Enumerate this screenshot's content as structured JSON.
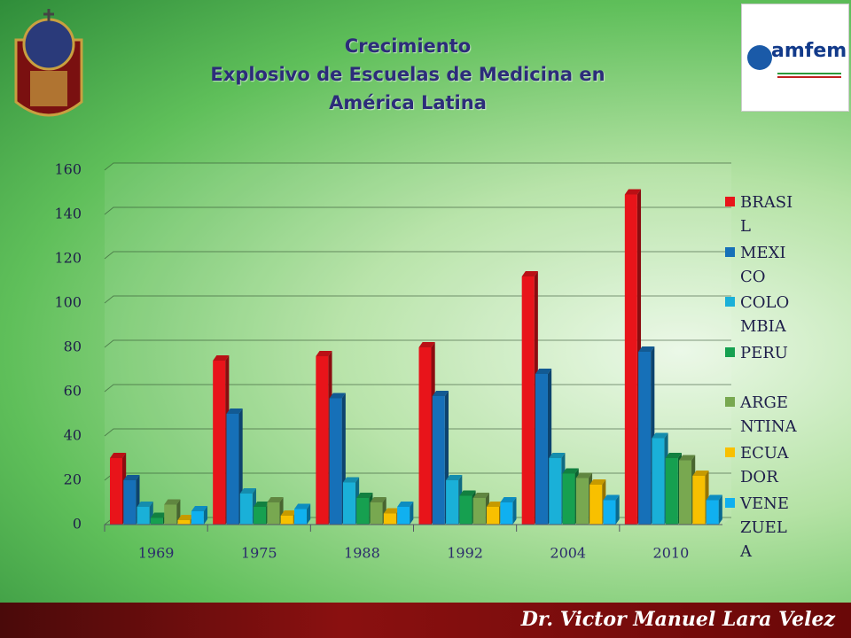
{
  "header": {
    "title": "Crecimiento\nExplosivo de Escuelas de Medicina en\nAmérica Latina",
    "logo_text": "amfem"
  },
  "footer": {
    "author": "Dr. Victor Manuel Lara Velez"
  },
  "chart_data": {
    "type": "bar3d",
    "categories": [
      "1969",
      "1975",
      "1988",
      "1992",
      "2004",
      "2010"
    ],
    "series": [
      {
        "name": "BRASIL",
        "color": "#e8141a",
        "values": [
          30,
          74,
          76,
          80,
          112,
          149
        ]
      },
      {
        "name": "MEXICO",
        "color": "#1670b8",
        "values": [
          20,
          50,
          57,
          58,
          68,
          78
        ]
      },
      {
        "name": "COLOMBIA",
        "color": "#1ab0d8",
        "values": [
          8,
          14,
          19,
          20,
          30,
          39
        ]
      },
      {
        "name": "PERU",
        "color": "#16a050",
        "values": [
          3,
          8,
          12,
          13,
          23,
          30
        ]
      },
      {
        "name": "ARGENTINA",
        "color": "#78a850",
        "values": [
          9,
          10,
          10,
          12,
          21,
          29
        ]
      },
      {
        "name": "ECUADOR",
        "color": "#f8c000",
        "values": [
          2,
          4,
          5,
          8,
          18,
          22
        ]
      },
      {
        "name": "VENEZUELA",
        "color": "#10b0f0",
        "values": [
          6,
          7,
          8,
          10,
          11,
          11
        ]
      }
    ],
    "ylim": [
      0,
      160
    ],
    "yticks": [
      0,
      20,
      40,
      60,
      80,
      100,
      120,
      140,
      160
    ],
    "grid": true
  }
}
